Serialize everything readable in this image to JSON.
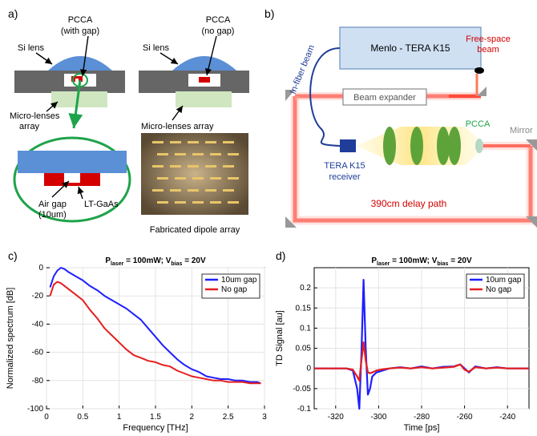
{
  "panel_a": {
    "label": "a)",
    "left": {
      "si_lens": "Si lens",
      "pcca_1": "PCCA",
      "pcca_2": "(with gap)",
      "micro_1": "Micro-lenses",
      "micro_2": "array"
    },
    "right": {
      "si_lens": "Si lens",
      "pcca_1": "PCCA",
      "pcca_2": "(no gap)",
      "micro": "Micro-lenses array"
    },
    "zoom": {
      "air_gap_1": "Air gap",
      "air_gap_2": "(10um)",
      "ltgaas": "LT-GaAs"
    },
    "photo_caption": "Fabricated dipole array"
  },
  "panel_b": {
    "label": "b)",
    "menlo": "Menlo - TERA K15",
    "in_fiber": "In-fiber beam",
    "free_space_1": "Free-space",
    "free_space_2": "beam",
    "beam_expander": "Beam expander",
    "pcca": "PCCA",
    "mirror": "Mirror",
    "receiver_1": "TERA K15",
    "receiver_2": "receiver",
    "delay": "390cm delay path"
  },
  "chart_data": [
    {
      "type": "line",
      "panel_label": "c)",
      "title_parts": [
        "P",
        "laser",
        " = 100mW; V",
        "bias",
        " = 20V"
      ],
      "xlabel": "Frequency  [THz]",
      "ylabel": "Normalized spectrum  [dB]",
      "xlim": [
        0,
        3
      ],
      "ylim": [
        -100,
        0
      ],
      "xticks": [
        "0",
        "0.5",
        "1",
        "1.5",
        "2",
        "2.5",
        "3"
      ],
      "yticks": [
        "0",
        "-20",
        "-40",
        "-60",
        "-80",
        "-100"
      ],
      "grid": true,
      "legend_position": "top-right",
      "series": [
        {
          "name": "10um gap",
          "color": "#1f1fff",
          "x": [
            0.05,
            0.1,
            0.15,
            0.2,
            0.25,
            0.3,
            0.4,
            0.5,
            0.6,
            0.7,
            0.8,
            0.9,
            1.0,
            1.1,
            1.2,
            1.3,
            1.4,
            1.5,
            1.6,
            1.7,
            1.8,
            1.9,
            2.0,
            2.1,
            2.2,
            2.3,
            2.4,
            2.5,
            2.6,
            2.7,
            2.8,
            2.9,
            2.95
          ],
          "y": [
            -14,
            -6,
            -2,
            0,
            -1,
            -3,
            -6,
            -9,
            -13,
            -16,
            -20,
            -23,
            -26,
            -29,
            -33,
            -37,
            -43,
            -49,
            -55,
            -60,
            -65,
            -69,
            -72,
            -74,
            -77,
            -78,
            -79,
            -79,
            -80,
            -80,
            -81,
            -81,
            -82
          ]
        },
        {
          "name": "No gap",
          "color": "#e61e1e",
          "x": [
            0.05,
            0.1,
            0.15,
            0.2,
            0.25,
            0.3,
            0.4,
            0.5,
            0.6,
            0.7,
            0.8,
            0.9,
            1.0,
            1.1,
            1.2,
            1.3,
            1.4,
            1.5,
            1.6,
            1.7,
            1.8,
            1.9,
            2.0,
            2.1,
            2.2,
            2.3,
            2.4,
            2.5,
            2.6,
            2.7,
            2.8,
            2.9,
            2.95
          ],
          "y": [
            -20,
            -12,
            -10,
            -11,
            -13,
            -15,
            -19,
            -23,
            -30,
            -36,
            -43,
            -48,
            -53,
            -58,
            -62,
            -64,
            -66,
            -67,
            -69,
            -70,
            -73,
            -75,
            -77,
            -78,
            -79,
            -80,
            -80,
            -81,
            -81,
            -81,
            -82,
            -82,
            -82
          ]
        }
      ]
    },
    {
      "type": "line",
      "panel_label": "d)",
      "title_parts": [
        "P",
        "laser",
        " = 100mW; V",
        "bias",
        " = 20V"
      ],
      "xlabel": "Time  [ps]",
      "ylabel": "TD Signal  [au]",
      "xlim": [
        -330,
        -230
      ],
      "ylim": [
        -0.1,
        0.25
      ],
      "xticks": [
        "-320",
        "-300",
        "-280",
        "-260",
        "-240"
      ],
      "yticks": [
        "0.2",
        "0.15",
        "0.1",
        "0.05",
        "0",
        "-0.05",
        "-0.1"
      ],
      "grid": true,
      "legend_position": "top-right",
      "series": [
        {
          "name": "10um gap",
          "color": "#1f1fff",
          "x": [
            -330,
            -315,
            -312,
            -310,
            -309,
            -308,
            -307,
            -306,
            -305,
            -304,
            -303,
            -301,
            -298,
            -295,
            -290,
            -285,
            -280,
            -275,
            -270,
            -265,
            -262,
            -260,
            -258,
            -255,
            -250,
            -245,
            -240,
            -235,
            -230
          ],
          "y": [
            0,
            0,
            -0.005,
            -0.05,
            -0.1,
            0.04,
            0.22,
            0.05,
            -0.065,
            -0.05,
            -0.02,
            -0.01,
            -0.005,
            0,
            0.003,
            0,
            0.005,
            0,
            0.004,
            0.005,
            0.01,
            0,
            -0.01,
            0.005,
            0,
            0.003,
            0,
            0,
            0
          ]
        },
        {
          "name": "No gap",
          "color": "#e61e1e",
          "x": [
            -330,
            -315,
            -312,
            -310,
            -309,
            -308,
            -307,
            -306,
            -305,
            -304,
            -303,
            -301,
            -298,
            -295,
            -290,
            -285,
            -280,
            -275,
            -270,
            -265,
            -262,
            -260,
            -258,
            -255,
            -250,
            -245,
            -240,
            -235,
            -230
          ],
          "y": [
            0,
            0,
            -0.003,
            -0.02,
            -0.03,
            0.02,
            0.065,
            0.02,
            -0.01,
            -0.012,
            -0.01,
            -0.005,
            -0.002,
            0,
            0.002,
            0,
            0.003,
            0,
            0.002,
            0.004,
            0.01,
            -0.003,
            -0.008,
            0.003,
            0,
            0.002,
            0,
            0,
            0
          ]
        }
      ]
    }
  ]
}
